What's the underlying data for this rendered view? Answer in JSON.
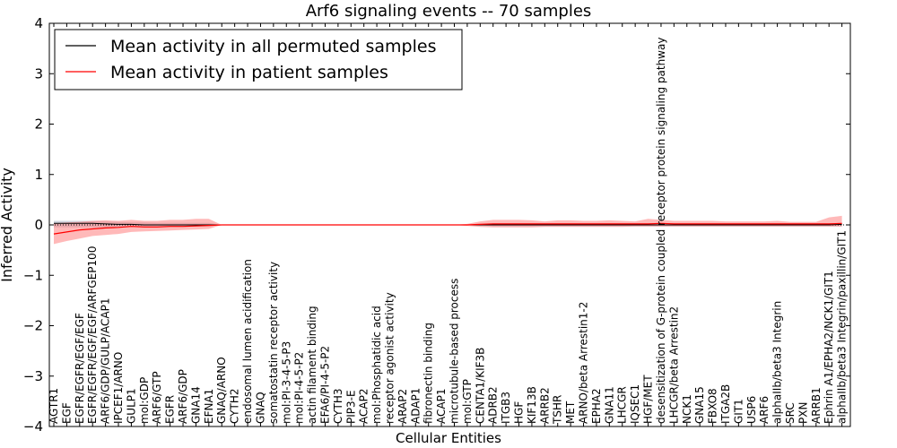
{
  "chart_data": {
    "type": "line",
    "title": "Arf6 signaling events -- 70 samples",
    "xlabel": "Cellular Entities",
    "ylabel": "Inferred Activity",
    "ylim": [
      -4,
      4
    ],
    "yticks": [
      4,
      3,
      2,
      1,
      0,
      -1,
      -2,
      -3,
      -4
    ],
    "ytick_labels": [
      "4",
      "3",
      "2",
      "1",
      "0",
      "−1",
      "−2",
      "−3",
      "−4"
    ],
    "legend_position": "top-left",
    "colors": {
      "permuted": "#000000",
      "patient": "#ff0000",
      "patient_band": "#ff8080",
      "permuted_band": "#b0b8c8"
    },
    "categories": [
      "AGTR1",
      "EGF",
      "EGFR/EGFR/EGF/EGF",
      "EGFR/EGFR/EGF/EGF/ARFGEP100",
      "ARF6/GDP/GULP/ACAP1",
      "IPCEF1/ARNO",
      "GULP1",
      "mol:GDP",
      "ARF6/GTP",
      "EGFR",
      "ARF6/GDP",
      "GNA14",
      "EFNA1",
      "GNAQ/ARNO",
      "CYTH2",
      "endosomal lumen acidification",
      "GNAQ",
      "somatostatin receptor activity",
      "mol:PI-3-4-5-P3",
      "mol:PI-4-5-P2",
      "actin filament binding",
      "EFA6/PI-4-5-P2",
      "CYTH3",
      "PIP3-E",
      "ACAP2",
      "mol:Phosphatidic acid",
      "receptor agonist activity",
      "ARAP2",
      "ADAP1",
      "fibronectin binding",
      "ACAP1",
      "microtubule-based process",
      "mol:GTP",
      "CENTA1/KIF3B",
      "ADRB2",
      "ITGB3",
      "HGF",
      "KIF13B",
      "ARRB2",
      "TSHR",
      "MET",
      "ARNO/beta Arrestin1-2",
      "EPHA2",
      "GNA11",
      "LHCGR",
      "IQSEC1",
      "HGF/MET",
      "desensitization of G-protein coupled receptor protein signaling pathway",
      "LHCGR/beta Arrestin2",
      "NCK1",
      "GNA15",
      "FBXO8",
      "ITGA2B",
      "GIT1",
      "USP6",
      "ARF6",
      "alphaIIb/beta3 Integrin",
      "SRC",
      "PXN",
      "ARRB1",
      "Ephrin A1/EPHA2/NCK1/GIT1",
      "alphaIIb/beta3 Integrin/paxillin/GIT1"
    ],
    "series": [
      {
        "name": "Mean activity in all permuted samples",
        "color": "#000000",
        "values": [
          0.03,
          0.03,
          0.03,
          0.03,
          0.02,
          0.01,
          0.01,
          0,
          0,
          0,
          0,
          0,
          0,
          0,
          0,
          0,
          0,
          0,
          0,
          0,
          0,
          0,
          0,
          0,
          0,
          0,
          0,
          0,
          0,
          0,
          0,
          0,
          0,
          0,
          0,
          0,
          0,
          0,
          0,
          0,
          0,
          0,
          0,
          0,
          0,
          0,
          0,
          0,
          0,
          0,
          0,
          0,
          0,
          0,
          0,
          0,
          0,
          0,
          0,
          0,
          0,
          0.01
        ],
        "band_low": [
          -0.05,
          -0.05,
          -0.05,
          -0.05,
          -0.05,
          -0.05,
          -0.04,
          -0.04,
          -0.03,
          -0.03,
          -0.03,
          -0.03,
          -0.03,
          0,
          0,
          0,
          0,
          0,
          0,
          0,
          0,
          0,
          0,
          0,
          0,
          0,
          0,
          0,
          0,
          0,
          0,
          0,
          0,
          0,
          -0.03,
          -0.03,
          -0.03,
          -0.03,
          -0.03,
          -0.03,
          -0.03,
          -0.03,
          -0.03,
          -0.03,
          -0.03,
          -0.03,
          -0.03,
          -0.03,
          -0.03,
          -0.03,
          -0.03,
          -0.03,
          -0.03,
          -0.03,
          -0.03,
          -0.03,
          -0.03,
          -0.03,
          -0.03,
          -0.03,
          -0.03,
          -0.03
        ],
        "band_high": [
          0.08,
          0.08,
          0.08,
          0.08,
          0.07,
          0.06,
          0.05,
          0.05,
          0.04,
          0.04,
          0.04,
          0.04,
          0.04,
          0,
          0,
          0,
          0,
          0,
          0,
          0,
          0,
          0,
          0,
          0,
          0,
          0,
          0,
          0,
          0,
          0,
          0,
          0,
          0,
          0,
          0.03,
          0.03,
          0.03,
          0.03,
          0.03,
          0.03,
          0.03,
          0.03,
          0.03,
          0.03,
          0.03,
          0.03,
          0.03,
          0.03,
          0.03,
          0.03,
          0.03,
          0.03,
          0.03,
          0.03,
          0.03,
          0.03,
          0.03,
          0.03,
          0.03,
          0.03,
          0.03,
          0.04
        ]
      },
      {
        "name": "Mean activity in patient samples",
        "color": "#ff0000",
        "values": [
          -0.18,
          -0.14,
          -0.1,
          -0.08,
          -0.06,
          -0.05,
          -0.03,
          -0.04,
          -0.04,
          -0.03,
          -0.03,
          -0.02,
          -0.01,
          0,
          0,
          0,
          0,
          0,
          0,
          0,
          0,
          0,
          0,
          0,
          0,
          0,
          0,
          0,
          0,
          0,
          0,
          0,
          0,
          0.01,
          0.02,
          0.02,
          0.02,
          0.02,
          0.02,
          0.02,
          0.02,
          0.02,
          0.02,
          0.02,
          0.02,
          0.02,
          0.02,
          0.03,
          0.02,
          0.02,
          0.02,
          0.02,
          0.02,
          0.02,
          0.02,
          0.02,
          0.02,
          0.02,
          0.02,
          0.02,
          0.02,
          0.03
        ],
        "band_low": [
          -0.38,
          -0.32,
          -0.27,
          -0.22,
          -0.2,
          -0.18,
          -0.14,
          -0.13,
          -0.12,
          -0.11,
          -0.1,
          -0.09,
          -0.08,
          0,
          0,
          0,
          0,
          0,
          0,
          0,
          0,
          0,
          0,
          0,
          0,
          0,
          0,
          0,
          0,
          0,
          0,
          0,
          -0.02,
          -0.04,
          -0.05,
          -0.05,
          -0.05,
          -0.05,
          -0.04,
          -0.04,
          -0.04,
          -0.04,
          -0.04,
          -0.04,
          -0.04,
          -0.03,
          -0.03,
          -0.03,
          -0.03,
          -0.03,
          -0.03,
          -0.03,
          -0.03,
          -0.03,
          -0.03,
          -0.03,
          -0.03,
          -0.03,
          -0.03,
          -0.03,
          -0.03,
          -0.03
        ],
        "band_high": [
          0.03,
          0.05,
          0.06,
          0.08,
          0.09,
          0.08,
          0.1,
          0.08,
          0.08,
          0.1,
          0.1,
          0.12,
          0.12,
          0,
          0,
          0,
          0,
          0,
          0,
          0,
          0,
          0,
          0,
          0,
          0,
          0,
          0,
          0,
          0,
          0,
          0,
          0,
          0.02,
          0.07,
          0.1,
          0.1,
          0.1,
          0.09,
          0.07,
          0.09,
          0.09,
          0.08,
          0.08,
          0.09,
          0.08,
          0.07,
          0.12,
          0.1,
          0.08,
          0.08,
          0.08,
          0.08,
          0.07,
          0.07,
          0.07,
          0.07,
          0.08,
          0.06,
          0.06,
          0.06,
          0.15,
          0.18
        ]
      }
    ]
  }
}
